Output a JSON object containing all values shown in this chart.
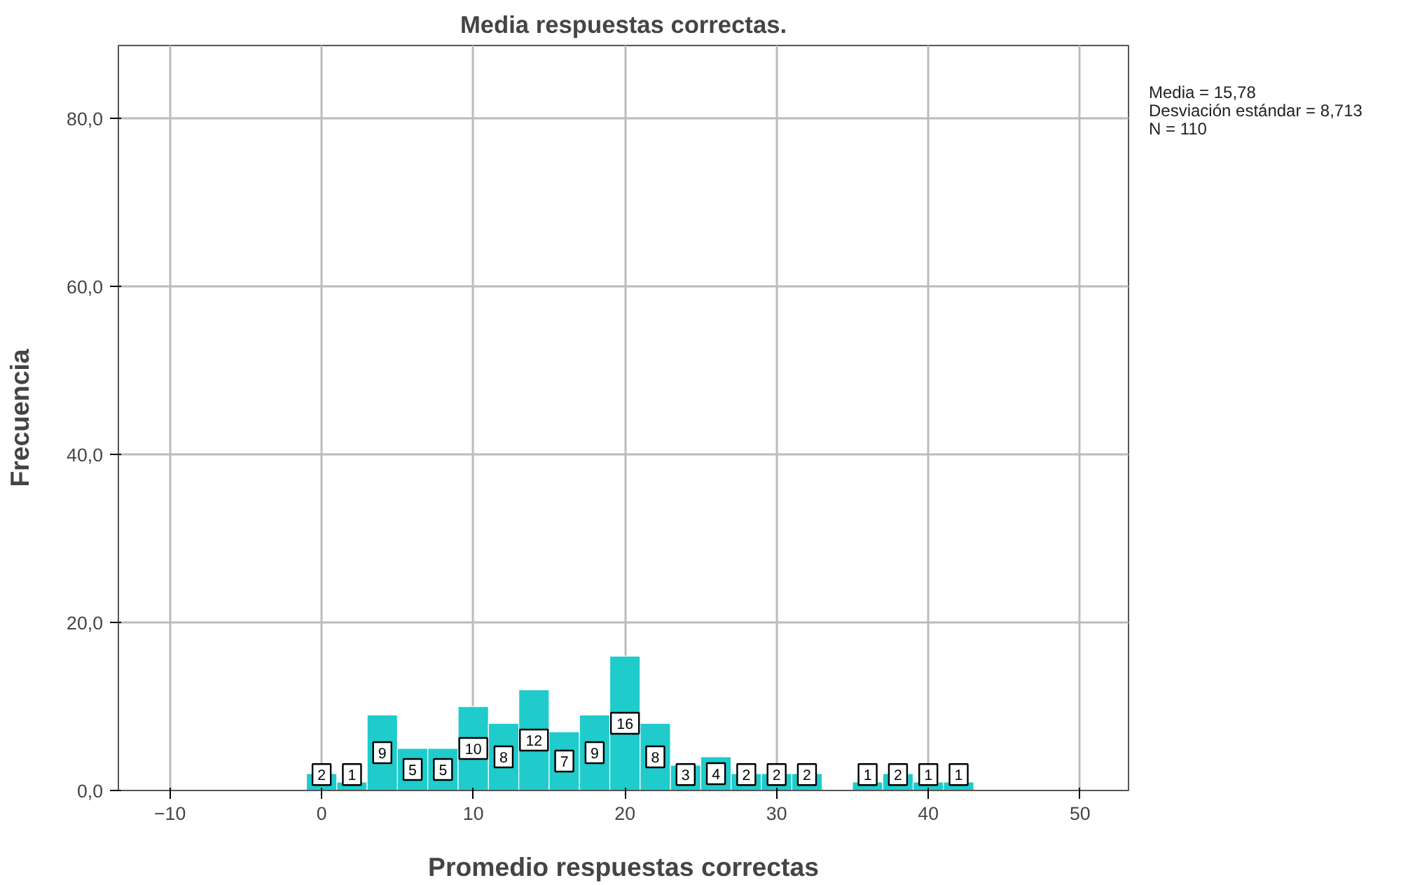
{
  "chart_data": {
    "type": "histogram",
    "title": "Media respuestas correctas.",
    "xlabel": "Promedio respuestas correctas",
    "ylabel": "Frecuencia",
    "bins": [
      -1,
      1,
      3,
      5,
      7,
      9,
      11,
      13,
      15,
      17,
      19,
      21,
      23,
      25,
      27,
      29,
      31,
      33,
      35,
      37,
      39,
      41,
      43
    ],
    "values": [
      2,
      1,
      9,
      5,
      5,
      10,
      8,
      12,
      7,
      9,
      16,
      8,
      3,
      4,
      2,
      2,
      2,
      0,
      1,
      2,
      1,
      1
    ],
    "value_labels": [
      "2",
      "1",
      "9",
      "5",
      "5",
      "10",
      "8",
      "12",
      "7",
      "9",
      "16",
      "8",
      "3",
      "4",
      "2",
      "2",
      "2",
      null,
      "1",
      "2",
      "1",
      "1"
    ],
    "color": "#1fcbcb",
    "xlim": [
      -13.4,
      53.2
    ],
    "ylim": [
      0,
      88.7
    ],
    "xticks": [
      -10,
      0,
      10,
      20,
      30,
      40,
      50
    ],
    "yticks": [
      {
        "value": 0,
        "label": "0,0"
      },
      {
        "value": 20,
        "label": "20,0"
      },
      {
        "value": 40,
        "label": "40,0"
      },
      {
        "value": 60,
        "label": "60,0"
      },
      {
        "value": 80,
        "label": "80,0"
      }
    ],
    "grid": true,
    "annotations": [
      "Media = 15,78",
      "Desviación estándar = 8,713",
      "N = 110"
    ]
  }
}
